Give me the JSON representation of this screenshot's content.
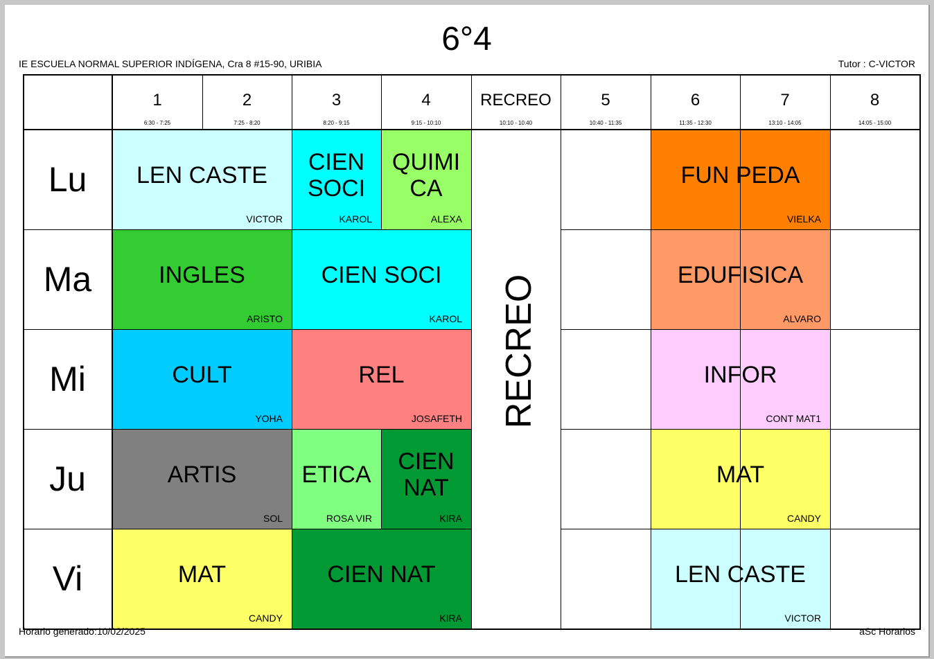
{
  "title": "6°4",
  "school": "IE ESCUELA NORMAL SUPERIOR INDÍGENA, Cra 8 #15-90, URIBIA",
  "tutor": "Tutor : C-VICTOR",
  "footer": {
    "generated": "Horario generado:10/02/2025",
    "app": "aSc Horarios"
  },
  "periods": [
    {
      "label": "1",
      "time": "6:30 - 7:25"
    },
    {
      "label": "2",
      "time": "7:25 - 8:20"
    },
    {
      "label": "3",
      "time": "8:20 - 9:15"
    },
    {
      "label": "4",
      "time": "9:15 - 10:10"
    },
    {
      "label": "RECREO",
      "time": "10:10 - 10:40"
    },
    {
      "label": "5",
      "time": "10:40 - 11:35"
    },
    {
      "label": "6",
      "time": "11:35 - 12:30"
    },
    {
      "label": "7",
      "time": "13:10 - 14:05"
    },
    {
      "label": "8",
      "time": "14:05 - 15:00"
    }
  ],
  "recreo_label": "RECREO",
  "days": [
    "Lu",
    "Ma",
    "Mi",
    "Ju",
    "Vi"
  ],
  "lessons": [
    {
      "day": 0,
      "start": 0,
      "span": 2,
      "subject": "LEN CASTE",
      "teacher": "VICTOR",
      "color": "#ccffff"
    },
    {
      "day": 0,
      "start": 2,
      "span": 1,
      "subject": "CIEN\nSOCI",
      "teacher": "KAROL",
      "color": "#00ffff"
    },
    {
      "day": 0,
      "start": 3,
      "span": 1,
      "subject": "QUIMI\nCA",
      "teacher": "ALEXA",
      "color": "#99ff66"
    },
    {
      "day": 0,
      "start": 5,
      "span": 2,
      "subject": "FUN PEDA",
      "teacher": "VIELKA",
      "color": "#ff8000"
    },
    {
      "day": 1,
      "start": 0,
      "span": 2,
      "subject": "INGLES",
      "teacher": "ARISTO",
      "color": "#33cc33"
    },
    {
      "day": 1,
      "start": 2,
      "span": 2,
      "subject": "CIEN SOCI",
      "teacher": "KAROL",
      "color": "#00ffff"
    },
    {
      "day": 1,
      "start": 5,
      "span": 2,
      "subject": "EDUFISICA",
      "teacher": "ALVARO",
      "color": "#ff9966"
    },
    {
      "day": 2,
      "start": 0,
      "span": 2,
      "subject": "CULT",
      "teacher": "YOHA",
      "color": "#00ccff"
    },
    {
      "day": 2,
      "start": 2,
      "span": 2,
      "subject": "REL",
      "teacher": "JOSAFETH",
      "color": "#ff8080"
    },
    {
      "day": 2,
      "start": 5,
      "span": 2,
      "subject": "INFOR",
      "teacher": "CONT MAT1",
      "color": "#ffccff"
    },
    {
      "day": 3,
      "start": 0,
      "span": 2,
      "subject": "ARTIS",
      "teacher": "SOL",
      "color": "#808080"
    },
    {
      "day": 3,
      "start": 2,
      "span": 1,
      "subject": "ETICA",
      "teacher": "ROSA VIR",
      "color": "#80ff80"
    },
    {
      "day": 3,
      "start": 3,
      "span": 1,
      "subject": "CIEN\nNAT",
      "teacher": "KIRA",
      "color": "#009933"
    },
    {
      "day": 3,
      "start": 5,
      "span": 2,
      "subject": "MAT",
      "teacher": "CANDY",
      "color": "#ffff66"
    },
    {
      "day": 4,
      "start": 0,
      "span": 2,
      "subject": "MAT",
      "teacher": "CANDY",
      "color": "#ffff66"
    },
    {
      "day": 4,
      "start": 2,
      "span": 2,
      "subject": "CIEN NAT",
      "teacher": "KIRA",
      "color": "#009933"
    },
    {
      "day": 4,
      "start": 5,
      "span": 2,
      "subject": "LEN CASTE",
      "teacher": "VICTOR",
      "color": "#ccffff"
    }
  ]
}
